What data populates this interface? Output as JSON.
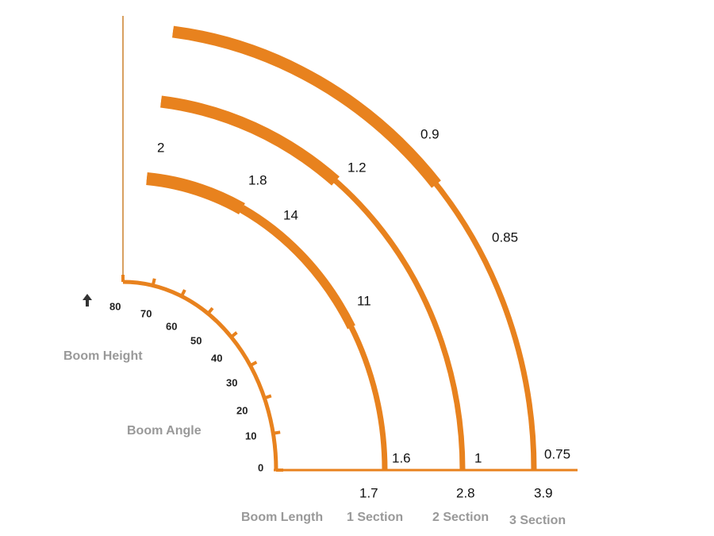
{
  "angle_scale": {
    "ticks": [
      0,
      10,
      20,
      30,
      40,
      50,
      60,
      70,
      80
    ]
  },
  "labels": {
    "boom_height": "Boom Height",
    "boom_angle": "Boom Angle",
    "boom_length": "Boom Length"
  },
  "sections": [
    {
      "name": "1 Section",
      "length": 1.7,
      "loads": [
        2,
        1.8,
        14,
        11,
        1.6
      ]
    },
    {
      "name": "2 Section",
      "length": 2.8,
      "loads": [
        1.2,
        1
      ]
    },
    {
      "name": "3 Section",
      "length": 3.9,
      "loads": [
        0.9,
        0.85,
        0.75
      ]
    }
  ]
}
